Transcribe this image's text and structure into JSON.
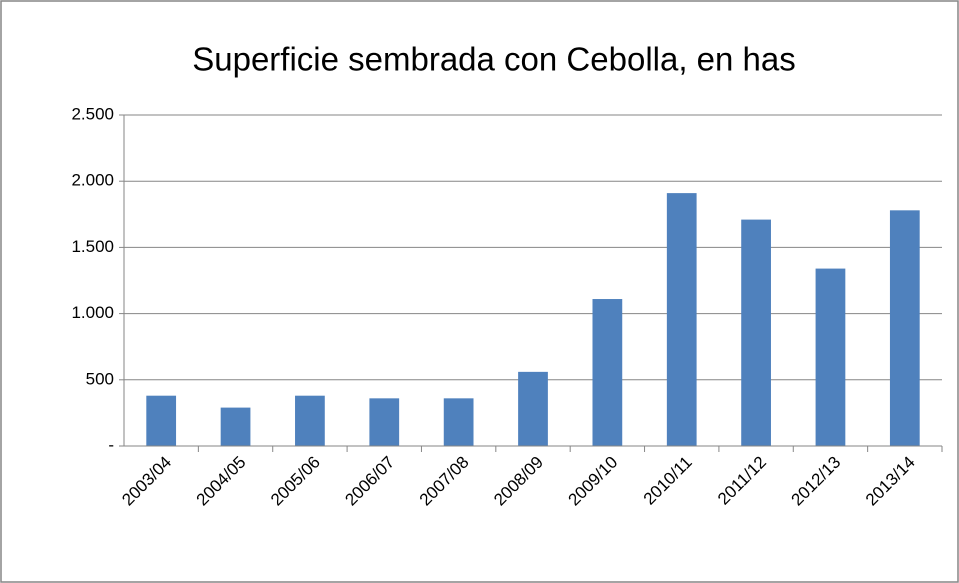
{
  "chart_data": {
    "type": "bar",
    "title": "Superficie sembrada con Cebolla, en has",
    "categories": [
      "2003/04",
      "2004/05",
      "2005/06",
      "2006/07",
      "2007/08",
      "2008/09",
      "2009/10",
      "2010/11",
      "2011/12",
      "2012/13",
      "2013/14"
    ],
    "values": [
      380,
      290,
      380,
      360,
      360,
      560,
      1110,
      1910,
      1710,
      1340,
      1780
    ],
    "color": "#4f81bd",
    "ylim": [
      0,
      2500
    ],
    "yticks": [
      {
        "value": 0,
        "label": "-"
      },
      500,
      {
        "value": 1000,
        "label": "1.000"
      },
      {
        "value": 1500,
        "label": "1.500"
      },
      {
        "value": 2000,
        "label": "2.000"
      },
      {
        "value": 2500,
        "label": "2.500"
      }
    ],
    "grid": true
  }
}
